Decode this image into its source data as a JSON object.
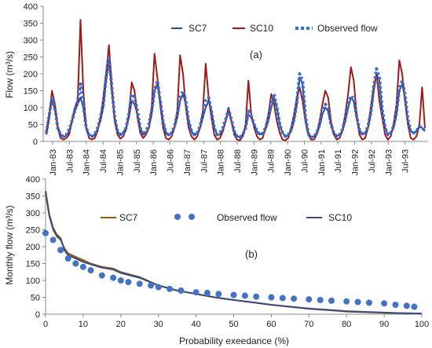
{
  "chart_data": [
    {
      "type": "line",
      "panel_label": "(a)",
      "ylabel": "Flow (m³/s)",
      "xlabel": "",
      "ylim": [
        0,
        400
      ],
      "yticks": [
        0,
        50,
        100,
        150,
        200,
        250,
        300,
        350,
        400
      ],
      "x_tick_labels": [
        "Jan-83",
        "Jul-83",
        "Jan-84",
        "Jul-84",
        "Jan-85",
        "Jul-85",
        "Jan-86",
        "Jul-86",
        "Jan-87",
        "Jul-87",
        "Jan-88",
        "Jul-88",
        "Jan-89",
        "Jul-89",
        "Jan-90",
        "Jul-90",
        "Jan-91",
        "Jul-91",
        "Jan-92",
        "Jul-92",
        "Jan-93",
        "Jul-93"
      ],
      "x_labels_partial": "rotated month labels, every 6th month",
      "legend": [
        "SC7",
        "SC10",
        "Observed flow"
      ],
      "legend_position": "top-right",
      "series": [
        {
          "name": "SC7",
          "color": "#2e4a8c",
          "values": [
            30,
            80,
            120,
            95,
            45,
            20,
            12,
            18,
            30,
            60,
            90,
            110,
            130,
            100,
            40,
            20,
            15,
            20,
            35,
            60,
            100,
            180,
            240,
            150,
            70,
            30,
            18,
            25,
            40,
            70,
            120,
            110,
            80,
            40,
            20,
            25,
            40,
            80,
            150,
            170,
            120,
            60,
            25,
            18,
            25,
            40,
            70,
            120,
            140,
            110,
            60,
            30,
            18,
            25,
            40,
            70,
            100,
            120,
            90,
            40,
            20,
            20,
            35,
            60,
            90,
            60,
            30,
            15,
            12,
            20,
            40,
            80,
            70,
            50,
            30,
            20,
            22,
            35,
            60,
            100,
            130,
            100,
            50,
            25,
            15,
            18,
            30,
            60,
            110,
            190,
            170,
            70,
            25,
            12,
            15,
            25,
            45,
            80,
            100,
            90,
            50,
            25,
            15,
            20,
            30,
            60,
            100,
            130,
            120,
            70,
            35,
            20,
            25,
            40,
            80,
            150,
            200,
            180,
            90,
            40,
            20,
            25,
            40,
            80,
            150,
            170,
            130,
            60,
            30,
            25,
            30,
            45,
            40,
            30
          ]
        },
        {
          "name": "SC10",
          "color": "#a01a1a",
          "values": [
            20,
            70,
            150,
            110,
            40,
            10,
            5,
            10,
            20,
            60,
            100,
            120,
            360,
            150,
            40,
            10,
            5,
            10,
            30,
            70,
            130,
            200,
            285,
            160,
            60,
            20,
            8,
            15,
            35,
            80,
            175,
            150,
            70,
            25,
            10,
            20,
            40,
            100,
            260,
            190,
            110,
            40,
            10,
            5,
            15,
            40,
            90,
            255,
            200,
            100,
            40,
            15,
            5,
            15,
            40,
            90,
            230,
            130,
            70,
            20,
            5,
            10,
            30,
            60,
            100,
            60,
            20,
            5,
            3,
            15,
            50,
            180,
            80,
            40,
            15,
            5,
            10,
            40,
            80,
            140,
            110,
            60,
            25,
            5,
            3,
            10,
            40,
            80,
            130,
            160,
            120,
            60,
            20,
            5,
            5,
            20,
            60,
            110,
            150,
            130,
            60,
            20,
            5,
            10,
            30,
            80,
            140,
            220,
            180,
            80,
            20,
            5,
            10,
            40,
            100,
            160,
            200,
            120,
            70,
            20,
            5,
            15,
            50,
            110,
            240,
            200,
            120,
            50,
            10,
            5,
            15,
            45,
            160,
            40
          ]
        },
        {
          "name": "Observed flow",
          "color": "#2f6fd8",
          "values": [
            25,
            75,
            130,
            100,
            40,
            20,
            15,
            20,
            35,
            60,
            90,
            120,
            170,
            110,
            40,
            20,
            15,
            20,
            40,
            70,
            110,
            190,
            250,
            160,
            70,
            30,
            20,
            25,
            40,
            80,
            140,
            130,
            90,
            40,
            20,
            30,
            50,
            90,
            150,
            180,
            120,
            60,
            25,
            20,
            25,
            45,
            80,
            130,
            150,
            120,
            60,
            30,
            20,
            25,
            45,
            80,
            120,
            130,
            90,
            40,
            20,
            25,
            40,
            65,
            95,
            65,
            30,
            15,
            12,
            20,
            40,
            90,
            75,
            50,
            30,
            20,
            25,
            40,
            70,
            110,
            140,
            100,
            50,
            25,
            15,
            20,
            35,
            65,
            115,
            200,
            180,
            75,
            25,
            12,
            15,
            25,
            50,
            90,
            110,
            95,
            50,
            25,
            15,
            20,
            35,
            65,
            105,
            135,
            125,
            75,
            35,
            20,
            25,
            45,
            85,
            160,
            215,
            190,
            95,
            40,
            20,
            25,
            45,
            85,
            155,
            180,
            140,
            65,
            30,
            25,
            30,
            45,
            42,
            30
          ]
        }
      ]
    },
    {
      "type": "line",
      "panel_label": "(b)",
      "ylabel": "Monthly flow (m³/s)",
      "xlabel": "Probability exeedance  (%)",
      "xlim": [
        0,
        100
      ],
      "ylim": [
        0,
        400
      ],
      "xticks": [
        0,
        10,
        20,
        30,
        40,
        50,
        60,
        70,
        80,
        90,
        100
      ],
      "yticks": [
        0,
        50,
        100,
        150,
        200,
        250,
        300,
        350,
        400
      ],
      "legend": [
        "SC7",
        "Observed flow",
        "SC10"
      ],
      "legend_position": "top",
      "series": [
        {
          "name": "SC7",
          "color": "#8b5a1e",
          "x": [
            0,
            1,
            2,
            3,
            4,
            5,
            6,
            8,
            10,
            12,
            15,
            18,
            20,
            25,
            30,
            35,
            40,
            45,
            50,
            55,
            60,
            65,
            70,
            75,
            80,
            85,
            90,
            95,
            100
          ],
          "values": [
            360,
            290,
            250,
            230,
            220,
            195,
            180,
            170,
            160,
            150,
            140,
            135,
            125,
            110,
            85,
            70,
            60,
            50,
            42,
            35,
            28,
            22,
            16,
            12,
            8,
            6,
            4,
            3,
            2
          ]
        },
        {
          "name": "SC10",
          "color": "#3b4a7e",
          "x": [
            0,
            1,
            2,
            3,
            4,
            5,
            6,
            8,
            10,
            12,
            15,
            18,
            20,
            25,
            30,
            35,
            40,
            45,
            50,
            55,
            60,
            65,
            70,
            75,
            80,
            85,
            90,
            95,
            100
          ],
          "values": [
            365,
            295,
            255,
            235,
            225,
            190,
            175,
            165,
            155,
            148,
            138,
            132,
            122,
            108,
            85,
            70,
            60,
            50,
            42,
            35,
            28,
            22,
            17,
            13,
            9,
            7,
            5,
            3,
            2
          ]
        },
        {
          "name": "Observed flow",
          "color": "#4472c4",
          "x": [
            0,
            2,
            4,
            6,
            8,
            10,
            12,
            15,
            18,
            20,
            22,
            25,
            28,
            30,
            33,
            36,
            40,
            43,
            46,
            50,
            53,
            56,
            60,
            63,
            66,
            70,
            73,
            76,
            80,
            83,
            86,
            90,
            93,
            96,
            98
          ],
          "values": [
            240,
            220,
            190,
            165,
            150,
            140,
            130,
            115,
            108,
            100,
            95,
            90,
            85,
            80,
            75,
            70,
            65,
            63,
            60,
            57,
            55,
            52,
            50,
            48,
            46,
            44,
            42,
            40,
            38,
            36,
            34,
            32,
            28,
            25,
            22
          ]
        }
      ]
    }
  ]
}
